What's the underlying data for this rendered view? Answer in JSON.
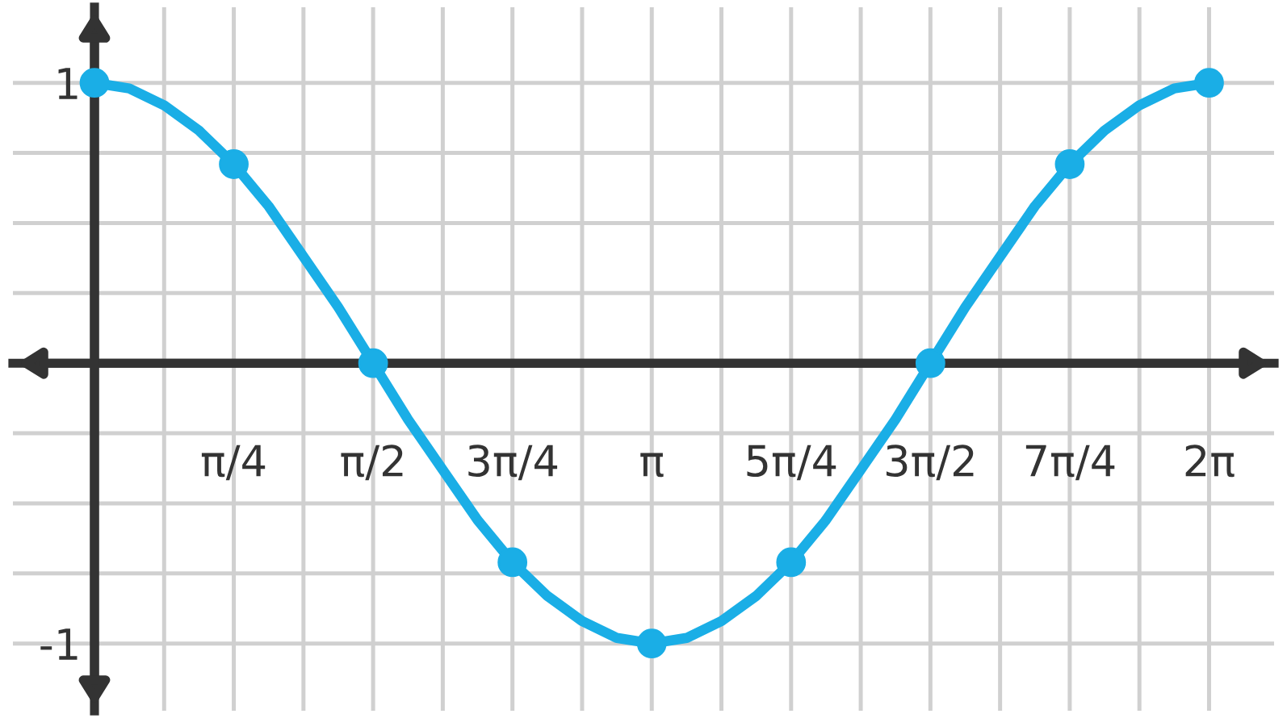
{
  "chart_data": {
    "type": "line",
    "xlim": [
      -0.46,
      6.65
    ],
    "ylim": [
      -1.24,
      1.27
    ],
    "xticks": [
      {
        "value": 0.3927,
        "label": null
      },
      {
        "value": 0.7854,
        "label": "π/4"
      },
      {
        "value": 1.1781,
        "label": null
      },
      {
        "value": 1.5708,
        "label": "π/2"
      },
      {
        "value": 1.9635,
        "label": null
      },
      {
        "value": 2.3562,
        "label": "3π/4"
      },
      {
        "value": 2.7489,
        "label": null
      },
      {
        "value": 3.1416,
        "label": "π"
      },
      {
        "value": 3.5343,
        "label": null
      },
      {
        "value": 3.927,
        "label": "5π/4"
      },
      {
        "value": 4.3197,
        "label": null
      },
      {
        "value": 4.7124,
        "label": "3π/2"
      },
      {
        "value": 5.1051,
        "label": null
      },
      {
        "value": 5.4978,
        "label": "7π/4"
      },
      {
        "value": 5.8905,
        "label": null
      },
      {
        "value": 6.2832,
        "label": "2π"
      }
    ],
    "yticks": [
      {
        "value": -1,
        "label": "-1"
      },
      {
        "value": -0.75,
        "label": null
      },
      {
        "value": -0.5,
        "label": null
      },
      {
        "value": -0.25,
        "label": null
      },
      {
        "value": 0.25,
        "label": null
      },
      {
        "value": 0.5,
        "label": null
      },
      {
        "value": 0.75,
        "label": null
      },
      {
        "value": 1,
        "label": "1"
      }
    ],
    "grid": true,
    "series": [
      {
        "type": "line",
        "color": "#1aaee6",
        "marker": "none",
        "x": [
          0,
          0.196,
          0.393,
          0.589,
          0.785,
          0.982,
          1.178,
          1.374,
          1.571,
          1.767,
          1.963,
          2.16,
          2.356,
          2.553,
          2.749,
          2.945,
          3.142,
          3.338,
          3.534,
          3.731,
          3.927,
          4.123,
          4.32,
          4.516,
          4.712,
          4.909,
          5.105,
          5.301,
          5.498,
          5.694,
          5.89,
          6.087,
          6.283
        ],
        "values": [
          1,
          0.98,
          0.92,
          0.83,
          0.71,
          0.56,
          0.38,
          0.2,
          0,
          -0.2,
          -0.38,
          -0.56,
          -0.71,
          -0.83,
          -0.92,
          -0.98,
          -1,
          -0.98,
          -0.92,
          -0.83,
          -0.71,
          -0.56,
          -0.38,
          -0.2,
          0,
          0.2,
          0.38,
          0.56,
          0.71,
          0.83,
          0.92,
          0.98,
          1
        ]
      },
      {
        "type": "scatter",
        "color": "#1aaee6",
        "marker": "circle",
        "x": [
          0,
          0.7854,
          1.5708,
          2.3562,
          3.1416,
          3.927,
          4.7124,
          5.4978,
          6.2832
        ],
        "values": [
          1,
          0.71,
          0,
          -0.71,
          -1,
          -0.71,
          0,
          0.71,
          1
        ]
      }
    ]
  }
}
